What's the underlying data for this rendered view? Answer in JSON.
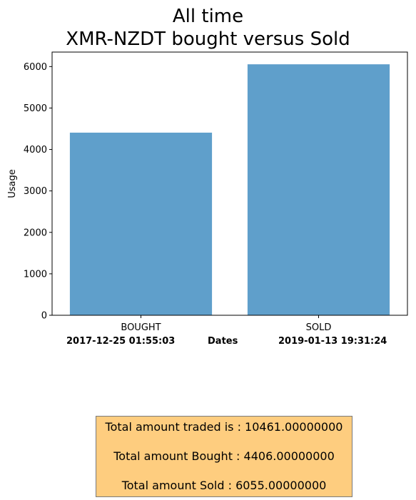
{
  "chart_data": {
    "type": "bar",
    "title_lines": [
      "All time",
      "XMR-NZDT bought versus Sold"
    ],
    "categories": [
      "BOUGHT",
      "SOLD"
    ],
    "values": [
      4406,
      6055
    ],
    "ylabel": "Usage",
    "xlabel_parts": [
      "2017-12-25 01:55:03",
      "Dates",
      "2019-01-13 19:31:24"
    ],
    "ylim": [
      0,
      6350
    ],
    "yticks": [
      0,
      1000,
      2000,
      3000,
      4000,
      5000,
      6000
    ],
    "bar_color": "#5f9fcb",
    "grid": false,
    "legend": "none"
  },
  "summary": {
    "lines": [
      "Total amount traded is : 10461.00000000",
      "Total amount Bought : 4406.00000000",
      "Total amount Sold : 6055.00000000"
    ],
    "box_color": "#fecd7f"
  }
}
